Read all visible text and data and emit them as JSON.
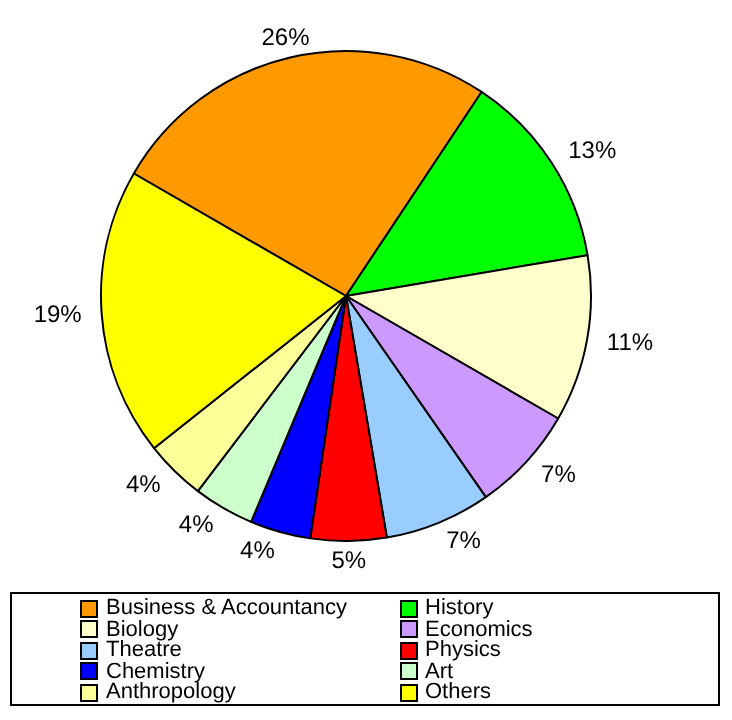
{
  "chart_data": {
    "type": "pie",
    "categories": [
      "Business & Accountancy",
      "History",
      "Biology",
      "Economics",
      "Theatre",
      "Physics",
      "Chemistry",
      "Art",
      "Anthropology",
      "Others"
    ],
    "values": [
      26,
      13,
      11,
      7,
      7,
      5,
      4,
      4,
      4,
      19
    ],
    "colors": [
      "#ff9900",
      "#00ff00",
      "#ffffcc",
      "#cc99ff",
      "#99ccff",
      "#ff0000",
      "#0000ff",
      "#ccffcc",
      "#ffff99",
      "#ffff00"
    ],
    "value_labels": [
      "26%",
      "13%",
      "11%",
      "7%",
      "7%",
      "5%",
      "4%",
      "4%",
      "4%",
      "19%"
    ],
    "legend": "bottom"
  }
}
